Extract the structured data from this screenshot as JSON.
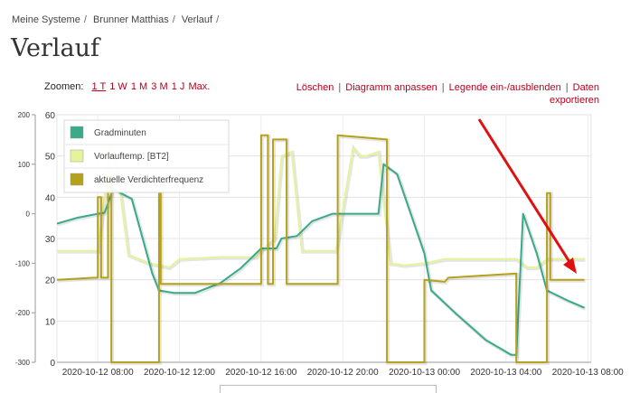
{
  "breadcrumb": [
    "Meine Systeme",
    "Brunner Matthias",
    "Verlauf"
  ],
  "page_title": "Verlauf",
  "zoom": {
    "label": "Zoomen:",
    "options": [
      "1 T",
      "1 W",
      "1 M",
      "3 M",
      "1 J",
      "Max."
    ],
    "active": "1 T"
  },
  "actions": [
    "Löschen",
    "Diagramm anpassen",
    "Legende ein-/ausblenden",
    "Daten exportieren"
  ],
  "annotation": {
    "type": "arrow",
    "color": "#e01010"
  },
  "chart_data": {
    "type": "line",
    "x_type": "time",
    "x_ticks": [
      "2020-10-12 08:00",
      "2020-10-12 12:00",
      "2020-10-12 16:00",
      "2020-10-12 20:00",
      "2020-10-13 00:00",
      "2020-10-13 04:00",
      "2020-10-13 08:00"
    ],
    "xlim": [
      "2020-10-12 06:00",
      "2020-10-13 08:10"
    ],
    "y_left_outer": {
      "ticks": [
        200,
        100,
        0,
        -100,
        -200,
        -300
      ],
      "range": [
        -300,
        200
      ]
    },
    "y_left_inner": {
      "ticks": [
        60,
        50,
        40,
        30,
        20,
        10,
        0
      ],
      "range": [
        0,
        60
      ]
    },
    "grid": true,
    "legend_position": "top-left",
    "series": [
      {
        "name": "Gradminuten",
        "color": "#3aaa8a",
        "axis": "outer",
        "points": [
          [
            "2020-10-12 06:00",
            -20
          ],
          [
            "2020-10-12 07:00",
            -8
          ],
          [
            "2020-10-12 08:00",
            0
          ],
          [
            "2020-10-12 08:20",
            2
          ],
          [
            "2020-10-12 08:45",
            50
          ],
          [
            "2020-10-12 09:40",
            30
          ],
          [
            "2020-10-12 10:40",
            -120
          ],
          [
            "2020-10-12 11:00",
            -155
          ],
          [
            "2020-10-12 11:45",
            -160
          ],
          [
            "2020-10-12 12:45",
            -160
          ],
          [
            "2020-10-12 14:00",
            -140
          ],
          [
            "2020-10-12 15:00",
            -110
          ],
          [
            "2020-10-12 16:00",
            -70
          ],
          [
            "2020-10-12 16:45",
            -70
          ],
          [
            "2020-10-12 17:00",
            -50
          ],
          [
            "2020-10-12 17:45",
            -45
          ],
          [
            "2020-10-12 18:30",
            -15
          ],
          [
            "2020-10-12 19:30",
            0
          ],
          [
            "2020-10-12 21:00",
            0
          ],
          [
            "2020-10-12 21:45",
            0
          ],
          [
            "2020-10-12 22:00",
            100
          ],
          [
            "2020-10-12 22:40",
            80
          ],
          [
            "2020-10-13 00:00",
            -80
          ],
          [
            "2020-10-13 00:20",
            -155
          ],
          [
            "2020-10-13 01:30",
            -200
          ],
          [
            "2020-10-13 03:00",
            -255
          ],
          [
            "2020-10-13 04:15",
            -285
          ],
          [
            "2020-10-13 04:30",
            -285
          ],
          [
            "2020-10-13 04:50",
            0
          ],
          [
            "2020-10-13 05:30",
            -80
          ],
          [
            "2020-10-13 06:00",
            -155
          ],
          [
            "2020-10-13 07:00",
            -175
          ],
          [
            "2020-10-13 07:50",
            -190
          ]
        ]
      },
      {
        "name": "Vorlauftemp. [BT2]",
        "color": "#e4f49a",
        "axis": "inner",
        "points": [
          [
            "2020-10-12 06:00",
            27
          ],
          [
            "2020-10-12 07:30",
            27
          ],
          [
            "2020-10-12 08:00",
            27
          ],
          [
            "2020-10-12 08:20",
            40
          ],
          [
            "2020-10-12 08:35",
            53
          ],
          [
            "2020-10-12 09:00",
            45
          ],
          [
            "2020-10-12 09:30",
            26
          ],
          [
            "2020-10-12 10:30",
            24
          ],
          [
            "2020-10-12 11:30",
            23
          ],
          [
            "2020-10-12 12:00",
            25
          ],
          [
            "2020-10-12 14:00",
            25.5
          ],
          [
            "2020-10-12 15:45",
            25.5
          ],
          [
            "2020-10-12 16:00",
            27
          ],
          [
            "2020-10-12 16:40",
            30
          ],
          [
            "2020-10-12 17:00",
            50
          ],
          [
            "2020-10-12 17:30",
            51
          ],
          [
            "2020-10-12 18:00",
            27
          ],
          [
            "2020-10-12 19:40",
            27
          ],
          [
            "2020-10-12 20:30",
            52
          ],
          [
            "2020-10-12 20:50",
            50
          ],
          [
            "2020-10-12 21:10",
            50
          ],
          [
            "2020-10-12 21:45",
            51
          ],
          [
            "2020-10-12 22:20",
            24
          ],
          [
            "2020-10-12 23:00",
            23.5
          ],
          [
            "2020-10-13 00:00",
            24
          ],
          [
            "2020-10-13 01:00",
            25
          ],
          [
            "2020-10-13 04:00",
            25
          ],
          [
            "2020-10-13 04:30",
            25
          ],
          [
            "2020-10-13 05:00",
            23
          ],
          [
            "2020-10-13 05:30",
            23
          ],
          [
            "2020-10-13 06:00",
            25
          ],
          [
            "2020-10-13 07:50",
            25
          ]
        ]
      },
      {
        "name": "aktuelle Verdichterfrequenz",
        "color": "#b5a21a",
        "axis": "inner",
        "points": [
          [
            "2020-10-12 06:00",
            20
          ],
          [
            "2020-10-12 07:50",
            20.5
          ],
          [
            "2020-10-12 08:00",
            20.5
          ],
          [
            "2020-10-12 08:00",
            40
          ],
          [
            "2020-10-12 08:10",
            40
          ],
          [
            "2020-10-12 08:10",
            20.5
          ],
          [
            "2020-10-12 08:30",
            20.5
          ],
          [
            "2020-10-12 08:30",
            45
          ],
          [
            "2020-10-12 08:40",
            45
          ],
          [
            "2020-10-12 08:40",
            0
          ],
          [
            "2020-10-12 11:00",
            0
          ],
          [
            "2020-10-12 11:00",
            41
          ],
          [
            "2020-10-12 11:05",
            41
          ],
          [
            "2020-10-12 11:05",
            19
          ],
          [
            "2020-10-12 16:00",
            19
          ],
          [
            "2020-10-12 16:00",
            55
          ],
          [
            "2020-10-12 16:20",
            55
          ],
          [
            "2020-10-12 16:20",
            19
          ],
          [
            "2020-10-12 16:35",
            19
          ],
          [
            "2020-10-12 16:35",
            54
          ],
          [
            "2020-10-12 17:15",
            54
          ],
          [
            "2020-10-12 17:15",
            19
          ],
          [
            "2020-10-12 19:45",
            19
          ],
          [
            "2020-10-12 19:45",
            55
          ],
          [
            "2020-10-12 22:10",
            54
          ],
          [
            "2020-10-12 22:10",
            0
          ],
          [
            "2020-10-13 00:00",
            0
          ],
          [
            "2020-10-13 00:00",
            20
          ],
          [
            "2020-10-13 01:00",
            19.5
          ],
          [
            "2020-10-13 01:10",
            20.5
          ],
          [
            "2020-10-13 04:30",
            21.5
          ],
          [
            "2020-10-13 04:30",
            0
          ],
          [
            "2020-10-13 06:00",
            0
          ],
          [
            "2020-10-13 06:00",
            41
          ],
          [
            "2020-10-13 06:10",
            41
          ],
          [
            "2020-10-13 06:10",
            20
          ],
          [
            "2020-10-13 07:50",
            20
          ]
        ]
      }
    ]
  }
}
